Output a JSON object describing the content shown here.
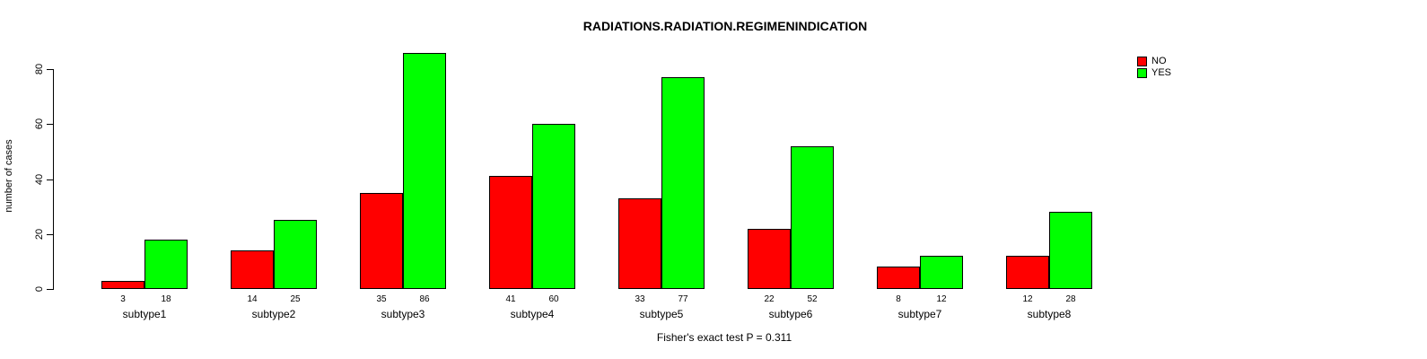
{
  "chart_data": {
    "type": "bar",
    "title": "RADIATIONS.RADIATION.REGIMENINDICATION",
    "ylabel": "number of cases",
    "xlabel": "",
    "caption": "Fisher's exact test P = 0.311",
    "categories": [
      "subtype1",
      "subtype2",
      "subtype3",
      "subtype4",
      "subtype5",
      "subtype6",
      "subtype7",
      "subtype8"
    ],
    "series": [
      {
        "name": "NO",
        "color": "#ff0000",
        "values": [
          3,
          14,
          35,
          41,
          33,
          22,
          8,
          12
        ]
      },
      {
        "name": "YES",
        "color": "#00ff00",
        "values": [
          18,
          25,
          86,
          60,
          77,
          52,
          12,
          28
        ]
      }
    ],
    "value_labels_shown": true,
    "ylim": [
      0,
      80
    ],
    "yticks": [
      0,
      20,
      40,
      60,
      80
    ],
    "grid": false,
    "legend_position": "top-right",
    "bar_border_color": "#000000",
    "background_color": "#ffffff"
  }
}
